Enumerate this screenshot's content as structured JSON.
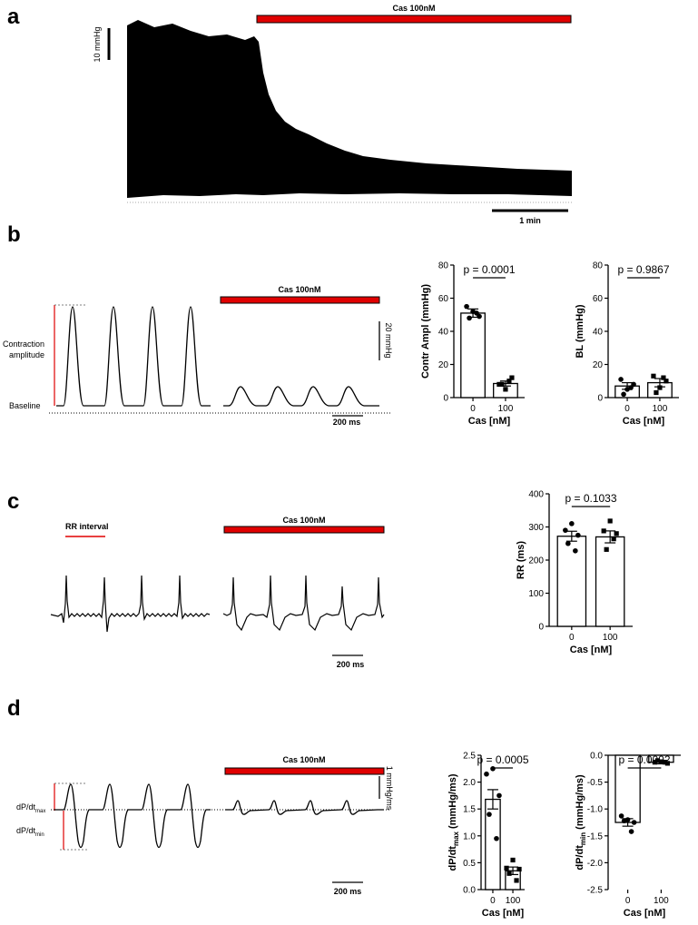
{
  "panels": {
    "a": {
      "letter": "a",
      "treatment_label": "Cas 100nM",
      "scale_vertical": "10 mmHg",
      "scale_horizontal": "1 min"
    },
    "b": {
      "letter": "b",
      "treatment_label": "Cas 100nM",
      "contraction_label_1": "Contraction",
      "contraction_label_2": "amplitude",
      "baseline_label": "Baseline",
      "scale_vertical": "20 mmHg",
      "scale_horizontal": "200 ms"
    },
    "c": {
      "letter": "c",
      "treatment_label": "Cas 100nM",
      "rr_interval_label": "RR interval",
      "scale_horizontal": "200 ms"
    },
    "d": {
      "letter": "d",
      "treatment_label": "Cas 100nM",
      "dpdt_max_label_main": "dP/dt",
      "dpdt_max_label_sub": "max",
      "dpdt_min_label_main": "dP/dt",
      "dpdt_min_label_sub": "min",
      "scale_vertical": "1 mmHg/ms",
      "scale_horizontal": "200 ms"
    }
  },
  "chart_data": [
    {
      "id": "contr-ampl",
      "type": "bar",
      "categories": [
        "0",
        "100"
      ],
      "values": [
        51,
        8.5
      ],
      "sem": [
        2.5,
        1.5
      ],
      "points": [
        [
          52,
          55,
          49,
          48,
          51
        ],
        [
          5,
          8,
          12,
          8,
          10
        ]
      ],
      "point_markers": [
        "circle",
        "square"
      ],
      "ylabel": "Contr Ampl (mmHg)",
      "ylabel_sub": "",
      "ylabel_rest": "",
      "xlabel": "Cas [nM]",
      "ylim": [
        0,
        80
      ],
      "yticks": [
        0,
        20,
        40,
        60,
        80
      ],
      "ytick_labels": [
        "0",
        "20",
        "40",
        "60",
        "80"
      ],
      "annotation": "p = 0.0001",
      "bracket": true
    },
    {
      "id": "bl",
      "type": "bar",
      "categories": [
        "0",
        "100"
      ],
      "values": [
        7,
        9
      ],
      "sem": [
        2,
        2.5
      ],
      "points": [
        [
          5,
          11,
          8,
          2,
          6
        ],
        [
          6,
          13,
          10,
          3,
          12
        ]
      ],
      "point_markers": [
        "circle",
        "square"
      ],
      "ylabel": "BL (mmHg)",
      "ylabel_sub": "",
      "ylabel_rest": "",
      "xlabel": "Cas [nM]",
      "ylim": [
        0,
        80
      ],
      "yticks": [
        0,
        20,
        40,
        60,
        80
      ],
      "ytick_labels": [
        "0",
        "20",
        "40",
        "60",
        "80"
      ],
      "annotation": "p = 0.9867",
      "bracket": true
    },
    {
      "id": "rr",
      "type": "bar",
      "categories": [
        "0",
        "100"
      ],
      "values": [
        272,
        270
      ],
      "sem": [
        15,
        18
      ],
      "points": [
        [
          310,
          290,
          275,
          250,
          228
        ],
        [
          318,
          288,
          280,
          232,
          264
        ]
      ],
      "point_markers": [
        "circle",
        "square"
      ],
      "ylabel": "RR (ms)",
      "ylabel_sub": "",
      "ylabel_rest": "",
      "xlabel": "Cas [nM]",
      "ylim": [
        0,
        400
      ],
      "yticks": [
        0,
        100,
        200,
        300,
        400
      ],
      "ytick_labels": [
        "0",
        "100",
        "200",
        "300",
        "400"
      ],
      "annotation": "p = 0.1033",
      "bracket": true
    },
    {
      "id": "dpdt-max",
      "type": "bar",
      "categories": [
        "0",
        "100"
      ],
      "values": [
        1.68,
        0.35
      ],
      "sem": [
        0.18,
        0.07
      ],
      "points": [
        [
          2.25,
          2.15,
          1.75,
          1.4,
          0.95
        ],
        [
          0.55,
          0.4,
          0.38,
          0.3,
          0.17
        ]
      ],
      "point_markers": [
        "circle",
        "square"
      ],
      "ylabel": "dP/dt",
      "ylabel_sub": "max",
      "ylabel_rest": " (mmHg/ms)",
      "xlabel": "Cas [nM]",
      "ylim": [
        0,
        2.5
      ],
      "yticks": [
        0,
        0.5,
        1,
        1.5,
        2,
        2.5
      ],
      "ytick_labels": [
        "0.0",
        "0.5",
        "1.0",
        "1.5",
        "2.0",
        "2.5"
      ],
      "annotation": "p = 0.0005",
      "bracket": true
    },
    {
      "id": "dpdt-min",
      "type": "bar",
      "categories": [
        "0",
        "100"
      ],
      "values": [
        -1.25,
        -0.13
      ],
      "sem": [
        0.07,
        0.03
      ],
      "points": [
        [
          -1.2,
          -1.13,
          -1.25,
          -1.22,
          -1.42
        ],
        [
          -0.12,
          -0.13,
          -0.15,
          -0.1,
          -0.13
        ]
      ],
      "point_markers": [
        "circle",
        "square"
      ],
      "ylabel": "dP/dt",
      "ylabel_sub": "min",
      "ylabel_rest": " (mmHg/ms)",
      "xlabel": "Cas [nM]",
      "ylim": [
        -2.5,
        0
      ],
      "yticks": [
        0,
        -0.5,
        -1,
        -1.5,
        -2,
        -2.5
      ],
      "ytick_labels": [
        "0.0",
        "-0.5",
        "-1.0",
        "-1.5",
        "-2.0",
        "-2.5"
      ],
      "annotation": "p = 0.0002",
      "bracket": true
    }
  ],
  "colors": {
    "treatment_bar": "#e00000",
    "marker_line": "#e00000",
    "trace": "#000000"
  }
}
